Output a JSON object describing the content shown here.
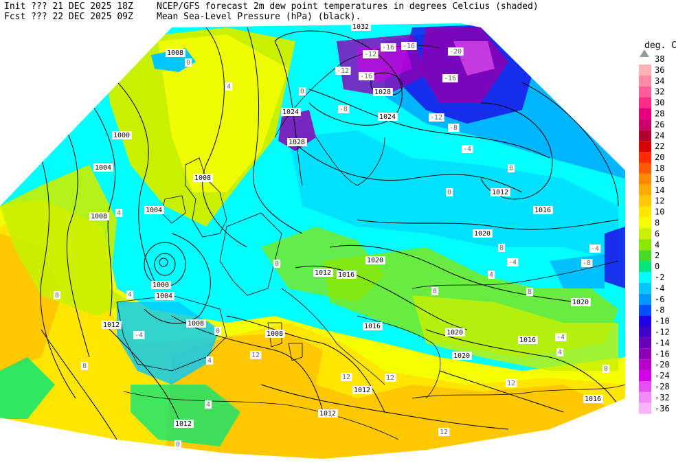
{
  "header": {
    "line1_left": "Init  ??? 21 DEC 2025 18Z",
    "line2_left": "Fcst ??? 22 DEC 2025 09Z",
    "line1_right": "NCEP/GFS forecast 2m dew point temperatures in degrees Celcius (shaded)",
    "line2_right": "Mean Sea-Level Pressure (hPa) (black)."
  },
  "legend": {
    "unit": "deg. C",
    "entries": [
      {
        "label": "38",
        "color": ""
      },
      {
        "label": "36",
        "color": "#ffb3b3"
      },
      {
        "label": "34",
        "color": "#ff8aa6"
      },
      {
        "label": "32",
        "color": "#ff5e9a"
      },
      {
        "label": "30",
        "color": "#ff2a8a"
      },
      {
        "label": "28",
        "color": "#e6007d"
      },
      {
        "label": "26",
        "color": "#c8006a"
      },
      {
        "label": "24",
        "color": "#b00030"
      },
      {
        "label": "22",
        "color": "#d80000"
      },
      {
        "label": "20",
        "color": "#ff2a00"
      },
      {
        "label": "18",
        "color": "#ff5a00"
      },
      {
        "label": "16",
        "color": "#ff8a00"
      },
      {
        "label": "14",
        "color": "#ffaa00"
      },
      {
        "label": "12",
        "color": "#ffc800"
      },
      {
        "label": "10",
        "color": "#ffe600"
      },
      {
        "label": "8",
        "color": "#f5ff00"
      },
      {
        "label": "6",
        "color": "#c8f000"
      },
      {
        "label": "4",
        "color": "#8ce600"
      },
      {
        "label": "2",
        "color": "#4ad82a"
      },
      {
        "label": "0",
        "color": "#00e67a"
      },
      {
        "label": "-2",
        "color": "#00ffff"
      },
      {
        "label": "-4",
        "color": "#00c8ff"
      },
      {
        "label": "-6",
        "color": "#0096ff"
      },
      {
        "label": "-8",
        "color": "#0050ff"
      },
      {
        "label": "-10",
        "color": "#1e00e6"
      },
      {
        "label": "-12",
        "color": "#4000c8"
      },
      {
        "label": "-14",
        "color": "#6600b4"
      },
      {
        "label": "-16",
        "color": "#8c00b4"
      },
      {
        "label": "-20",
        "color": "#b400c8"
      },
      {
        "label": "-24",
        "color": "#d200e6"
      },
      {
        "label": "-28",
        "color": "#e650f0"
      },
      {
        "label": "-32",
        "color": "#f08cf5"
      },
      {
        "label": "-36",
        "color": "#f8b4fa"
      }
    ]
  },
  "pressure_labels": [
    "1000",
    "1004",
    "1008",
    "1012",
    "1016",
    "1020",
    "1024",
    "1028",
    "1032"
  ],
  "map_labels": {
    "l_1008_iceland": "1008",
    "l_1000_w": "1000",
    "l_1004_w": "1004",
    "l_1008_w": "1008",
    "l_1004_uk": "1004",
    "l_1008_uk": "1008",
    "l_1000_low": "1000",
    "l_1004_low": "1004",
    "l_1012_atl": "1012",
    "l_1008_spain": "1008",
    "l_1008_med": "1008",
    "l_1012_med": "1012",
    "l_1012_sw": "1012",
    "l_1012_s": "1012",
    "l_1012_alps": "1012",
    "l_1016_alps": "1016",
    "l_1020_c": "1020",
    "l_1020_e": "1020",
    "l_1016_e": "1016",
    "l_1012_ne": "1012",
    "l_1024_n": "1024",
    "l_1028_n": "1028",
    "l_1028_nw": "1028",
    "l_1024_nw": "1024",
    "l_1032_n": "1032",
    "l_1020_se": "1020",
    "l_1016_se": "1016",
    "l_1020_bal": "1020",
    "l_1020_grc": "1020",
    "l_1016_tr": "1016",
    "l_1016_it": "1016",
    "t_m4_ne": "-4",
    "t_m8_ne": "-8",
    "t_m12_ne": "-12",
    "t_m16_ne": "-16",
    "t_m20_ne": "-20",
    "t_m16_n": "-16",
    "t_m16_n2": "-16",
    "t_m12_n": "-12",
    "t_m16_no": "-16",
    "t_m8_no": "-8",
    "t_m12_no": "-12",
    "t_4_nsea": "4",
    "t_4_atl": "4",
    "t_0_ice": "0",
    "t_0_nor": "0",
    "t_0_e": "0",
    "t_8_e": "8",
    "t_12_med": "12",
    "t_12_med2": "12",
    "t_12_med3": "12",
    "t_12_med4": "12",
    "t_8_atl": "8",
    "t_8_atl2": "8",
    "t_4_spain": "4",
    "t_0_spain": "0",
    "t_m4_med": "-4",
    "t_4_se": "4",
    "t_8_se": "8",
    "t_0_se": "0",
    "t_m4_bs": "-4",
    "t_m8_bs": "-8",
    "t_0_af": "0",
    "t_4_af": "4",
    "t_12_se": "12",
    "t_m4_cas": "-4",
    "t_0_ukr": "0",
    "t_4_ukr": "4",
    "t_m4_bal": "-4",
    "t_0_fr": "0",
    "t_4_fr": "4",
    "t_8_it": "8"
  }
}
